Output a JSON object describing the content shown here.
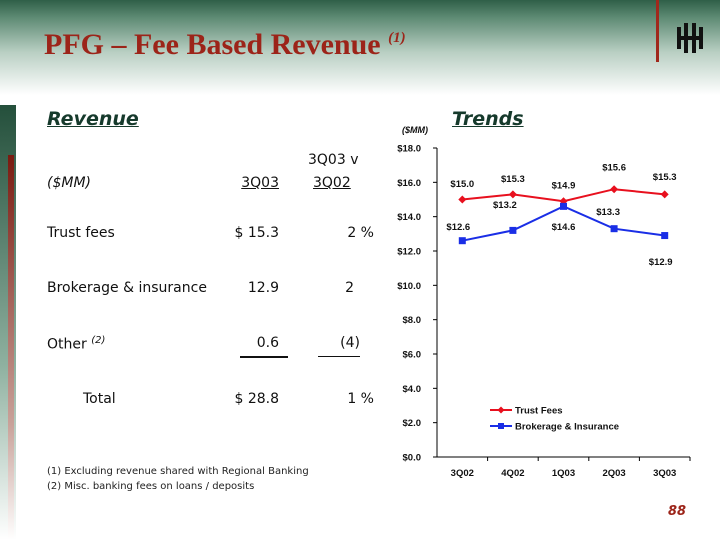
{
  "title": "PFG – Fee Based Revenue",
  "title_note": "(1)",
  "page_number": "88",
  "revenue": {
    "heading": "Revenue",
    "col_header_top": "3Q03 v",
    "label_header": "($MM)",
    "col1_header": "3Q03",
    "col2_header": "3Q02",
    "rows": [
      {
        "label": "Trust fees",
        "note": "",
        "value": "$ 15.3",
        "change": "2 %"
      },
      {
        "label": "Brokerage & insurance",
        "note": "",
        "value": "12.9",
        "change": "2"
      },
      {
        "label": "Other",
        "note": "(2)",
        "value": "0.6",
        "change": "(4)"
      }
    ],
    "total": {
      "label": "Total",
      "value": "$ 28.8",
      "change": "1 %"
    }
  },
  "footnotes": [
    "(1)  Excluding revenue shared with Regional Banking",
    "(2)  Misc. banking fees on loans / deposits"
  ],
  "trends_heading": "Trends",
  "chart_data": {
    "type": "line",
    "units_label": "($MM)",
    "categories": [
      "3Q02",
      "4Q02",
      "1Q03",
      "2Q03",
      "3Q03"
    ],
    "ylim": [
      0,
      18
    ],
    "ytick_step": 2,
    "ytick_labels": [
      "$0.0",
      "$2.0",
      "$4.0",
      "$6.0",
      "$8.0",
      "$10.0",
      "$12.0",
      "$14.0",
      "$16.0",
      "$18.0"
    ],
    "series": [
      {
        "name": "Trust Fees",
        "color": "#e8101e",
        "marker": "diamond",
        "values": [
          15.0,
          15.3,
          14.9,
          15.6,
          15.3
        ],
        "labels": [
          "$15.0",
          "$15.3",
          "$14.9",
          "$15.6",
          "$15.3"
        ]
      },
      {
        "name": "Brokerage & Insurance",
        "color": "#1a2ee6",
        "marker": "square",
        "values": [
          12.6,
          13.2,
          14.6,
          13.3,
          12.9
        ],
        "labels": [
          "$12.6",
          "$13.2",
          "$14.6",
          "$13.3",
          "$12.9"
        ]
      }
    ],
    "grid": false,
    "legend": "lower-middle"
  }
}
